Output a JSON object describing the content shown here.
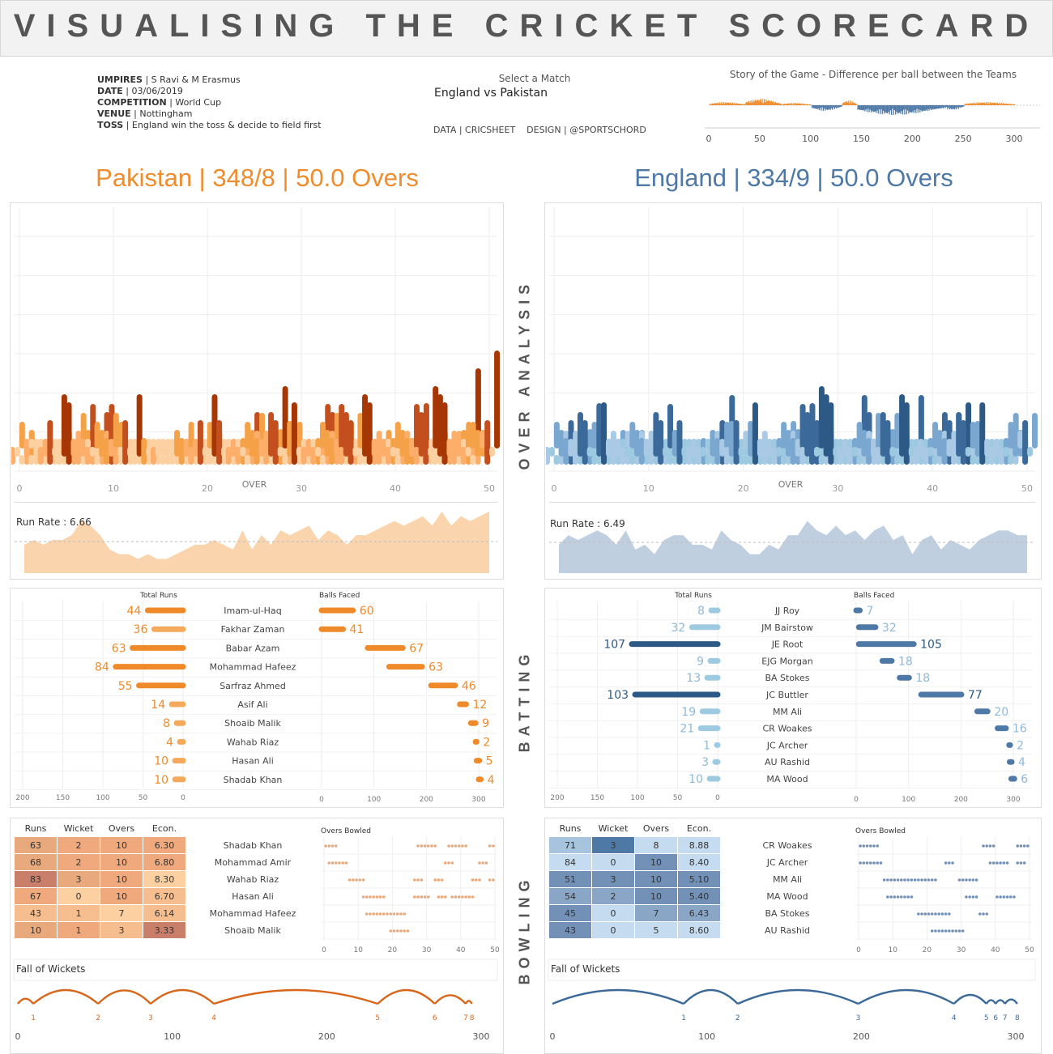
{
  "header": {
    "title": "VISUALISING THE CRICKET SCORECARD",
    "umpires_label": "UMPIRES",
    "umpires": "S Ravi & M Erasmus",
    "date_label": "DATE",
    "date": "03/06/2019",
    "competition_label": "COMPETITION",
    "competition": "World Cup",
    "venue_label": "VENUE",
    "venue": "Nottingham",
    "toss_label": "TOSS",
    "toss": "England win the toss & decide to field first",
    "select_label": "Select a Match",
    "select_value": "England vs Pakistan",
    "credits": "DATA | CRICSHEET    DESIGN | @SPORTSCHORD",
    "story_title": "Story of the Game - Difference per ball between the Teams"
  },
  "section_labels": {
    "over": "OVER ANALYSIS",
    "batting": "BATTING",
    "bowling": "BOWLING"
  },
  "colors": {
    "pak": "#ef8c2d",
    "eng": "#4e79a7"
  },
  "teams": {
    "pakistan": {
      "title": "Pakistan | 348/8 | 50.0 Overs",
      "run_rate": "Run Rate : 6.66"
    },
    "england": {
      "title": "England | 334/9 | 50.0 Overs",
      "run_rate": "Run Rate : 6.49"
    }
  },
  "labels": {
    "over": "OVER",
    "total_runs": "Total Runs",
    "balls_faced": "Balls Faced",
    "overs_bowled": "Overs Bowled",
    "fall_of_wickets": "Fall of Wickets",
    "runs": "Runs",
    "wicket": "Wicket",
    "overs": "Overs",
    "econ": "Econ."
  },
  "chart_data": [
    {
      "id": "story",
      "type": "bar",
      "title": "Story of the Game - Difference per ball between the Teams",
      "xlim": [
        0,
        300
      ],
      "x_ticks": [
        0,
        50,
        100,
        150,
        200,
        250,
        300
      ],
      "segments": [
        {
          "from": 1,
          "to": 35,
          "sign": "pos",
          "peak": 4
        },
        {
          "from": 36,
          "to": 70,
          "sign": "pos",
          "peak": 8
        },
        {
          "from": 71,
          "to": 100,
          "sign": "pos",
          "peak": 3
        },
        {
          "from": 101,
          "to": 130,
          "sign": "neg",
          "peak": 7
        },
        {
          "from": 131,
          "to": 145,
          "sign": "pos",
          "peak": 6
        },
        {
          "from": 146,
          "to": 230,
          "sign": "neg",
          "peak": 12
        },
        {
          "from": 231,
          "to": 250,
          "sign": "neg",
          "peak": 6
        },
        {
          "from": 251,
          "to": 300,
          "sign": "pos",
          "peak": 4
        }
      ]
    },
    {
      "id": "pak-overs",
      "type": "bar",
      "xlabel": "OVER",
      "xlim": [
        0,
        50
      ],
      "x_ticks": [
        0,
        10,
        20,
        30,
        40,
        50
      ],
      "series": [
        {
          "name": "Pakistan",
          "values": [
            6,
            1,
            0,
            2,
            4,
            11,
            14,
            3,
            12,
            9,
            6,
            1,
            4,
            6,
            2,
            1,
            0,
            2,
            5,
            2,
            6,
            7,
            4,
            5,
            11,
            3,
            4,
            8,
            14,
            3,
            6,
            9,
            11,
            4,
            10,
            6,
            7,
            8,
            10,
            4,
            4,
            5,
            12,
            5,
            10,
            9,
            12,
            13,
            6,
            17
          ]
        }
      ]
    },
    {
      "id": "eng-overs",
      "type": "bar",
      "xlabel": "OVER",
      "xlim": [
        0,
        50
      ],
      "x_ticks": [
        0,
        10,
        20,
        30,
        40,
        50
      ],
      "series": [
        {
          "name": "England",
          "values": [
            4,
            7,
            4,
            8,
            6,
            5,
            11,
            3,
            6,
            3,
            4,
            6,
            8,
            2,
            4,
            6,
            1,
            12,
            5,
            4,
            5,
            3,
            9,
            4,
            7,
            6,
            12,
            9,
            11,
            7,
            6,
            10,
            8,
            4,
            6,
            8,
            7,
            13,
            6,
            5,
            8,
            10,
            4,
            13,
            6,
            3,
            7,
            8,
            6,
            10
          ]
        }
      ]
    },
    {
      "id": "pak-runrate",
      "type": "area",
      "ylabel": "Run Rate : 6.66",
      "reference": 6.66,
      "values": [
        6,
        7,
        6,
        7,
        7,
        8,
        11,
        10,
        8,
        5,
        4,
        4,
        3,
        4,
        3,
        3,
        4,
        5,
        6,
        6,
        7,
        6,
        5,
        9,
        5,
        8,
        6,
        9,
        8,
        9,
        10,
        7,
        9,
        8,
        6,
        8,
        8,
        9,
        10,
        11,
        10,
        11,
        12,
        10,
        13,
        10,
        12,
        11,
        12,
        13
      ]
    },
    {
      "id": "eng-runrate",
      "type": "area",
      "ylabel": "Run Rate : 6.49",
      "reference": 6.49,
      "values": [
        6,
        8,
        7,
        8,
        9,
        8,
        6,
        9,
        5,
        6,
        4,
        7,
        8,
        8,
        6,
        6,
        5,
        9,
        7,
        6,
        4,
        4,
        6,
        5,
        8,
        8,
        11,
        9,
        8,
        10,
        8,
        9,
        7,
        9,
        10,
        7,
        8,
        4,
        7,
        8,
        5,
        7,
        6,
        5,
        7,
        8,
        9,
        9,
        8,
        8
      ]
    },
    {
      "id": "pak-batting",
      "type": "bar",
      "categories": [
        "Imam-ul-Haq",
        "Fakhar Zaman",
        "Babar Azam",
        "Mohammad Hafeez",
        "Sarfraz Ahmed",
        "Asif Ali",
        "Shoaib Malik",
        "Wahab Riaz",
        "Hasan Ali",
        "Shadab Khan"
      ],
      "series": [
        {
          "name": "Total Runs",
          "values": [
            44,
            36,
            63,
            84,
            55,
            14,
            8,
            4,
            10,
            10
          ]
        },
        {
          "name": "Balls Faced",
          "values": [
            60,
            41,
            67,
            63,
            46,
            12,
            9,
            2,
            5,
            4
          ],
          "start": [
            0,
            0,
            88,
            129,
            209,
            264,
            285,
            294,
            296,
            300
          ]
        }
      ],
      "runs_axis": {
        "lim": [
          200,
          0
        ],
        "ticks": [
          200,
          150,
          100,
          50,
          0
        ]
      },
      "balls_axis": {
        "lim": [
          0,
          300
        ],
        "ticks": [
          0,
          100,
          200,
          300
        ]
      }
    },
    {
      "id": "eng-batting",
      "type": "bar",
      "categories": [
        "JJ Roy",
        "JM Bairstow",
        "JE Root",
        "EJG Morgan",
        "BA Stokes",
        "JC Buttler",
        "MM Ali",
        "CR Woakes",
        "JC Archer",
        "AU Rashid",
        "MA Wood"
      ],
      "series": [
        {
          "name": "Total Runs",
          "values": [
            8,
            32,
            107,
            9,
            13,
            103,
            19,
            21,
            1,
            3,
            10
          ]
        },
        {
          "name": "Balls Faced",
          "values": [
            7,
            32,
            105,
            18,
            18,
            77,
            20,
            16,
            2,
            4,
            6
          ],
          "start": [
            0,
            5,
            5,
            50,
            83,
            124,
            231,
            270,
            292,
            293,
            296
          ]
        }
      ],
      "runs_axis": {
        "lim": [
          200,
          0
        ],
        "ticks": [
          200,
          150,
          100,
          50,
          0
        ]
      },
      "balls_axis": {
        "lim": [
          0,
          300
        ],
        "ticks": [
          0,
          100,
          200,
          300
        ]
      }
    },
    {
      "id": "pak-bowling",
      "type": "table",
      "columns": [
        "Runs",
        "Wicket",
        "Overs",
        "Econ."
      ],
      "rows": [
        {
          "name": "Shadab Khan",
          "values": [
            "63",
            "2",
            "10",
            "6.30"
          ],
          "overs": [
            1,
            2,
            3,
            4,
            28,
            29,
            30,
            31,
            32,
            33,
            37,
            38,
            39,
            40,
            41,
            42,
            49,
            50
          ],
          "shade": [
            4,
            3,
            3,
            3
          ]
        },
        {
          "name": "Mohammad Amir",
          "values": [
            "68",
            "2",
            "10",
            "6.80"
          ],
          "overs": [
            2,
            3,
            4,
            5,
            6,
            7,
            36,
            37,
            38,
            46,
            47,
            48
          ],
          "shade": [
            4,
            3,
            3,
            3
          ]
        },
        {
          "name": "Wahab Riaz",
          "values": [
            "83",
            "3",
            "10",
            "8.30"
          ],
          "overs": [
            8,
            9,
            10,
            11,
            12,
            27,
            28,
            29,
            33,
            34,
            35,
            44,
            45,
            46,
            49,
            50
          ],
          "shade": [
            5,
            4,
            3,
            1
          ]
        },
        {
          "name": "Hasan Ali",
          "values": [
            "67",
            "0",
            "10",
            "6.70"
          ],
          "overs": [
            12,
            13,
            14,
            15,
            16,
            17,
            18,
            27,
            28,
            29,
            30,
            31,
            34,
            35,
            36,
            38,
            39,
            40,
            41,
            42,
            43,
            44
          ],
          "shade": [
            3,
            1,
            3,
            2
          ]
        },
        {
          "name": "Mohammad Hafeez",
          "values": [
            "43",
            "1",
            "7",
            "6.14"
          ],
          "overs": [
            13,
            14,
            15,
            16,
            17,
            18,
            19,
            20,
            21,
            22,
            23,
            24
          ],
          "shade": [
            2,
            2,
            1,
            2
          ]
        },
        {
          "name": "Shoaib Malik",
          "values": [
            "10",
            "1",
            "3",
            "3.33"
          ],
          "overs": [
            20,
            21,
            22,
            23,
            24,
            25
          ],
          "shade": [
            4,
            3,
            2,
            5
          ]
        }
      ],
      "overs_axis": {
        "lim": [
          0,
          50
        ],
        "ticks": [
          0,
          10,
          20,
          30,
          40,
          50
        ]
      }
    },
    {
      "id": "eng-bowling",
      "type": "table",
      "columns": [
        "Runs",
        "Wicket",
        "Overs",
        "Econ."
      ],
      "rows": [
        {
          "name": "CR Woakes",
          "values": [
            "71",
            "3",
            "8",
            "8.88"
          ],
          "overs": [
            1,
            2,
            3,
            4,
            5,
            6,
            37,
            38,
            39,
            40,
            47,
            48,
            49,
            50
          ],
          "shade": [
            2,
            5,
            1,
            1
          ]
        },
        {
          "name": "JC Archer",
          "values": [
            "84",
            "0",
            "10",
            "8.40"
          ],
          "overs": [
            1,
            2,
            3,
            4,
            5,
            6,
            7,
            26,
            27,
            28,
            39,
            40,
            41,
            42,
            43,
            44,
            47,
            48,
            49
          ],
          "shade": [
            1,
            1,
            4,
            1
          ]
        },
        {
          "name": "MM Ali",
          "values": [
            "51",
            "3",
            "10",
            "5.10"
          ],
          "overs": [
            8,
            9,
            10,
            11,
            12,
            13,
            14,
            15,
            16,
            17,
            18,
            19,
            20,
            21,
            22,
            23,
            30,
            31,
            32,
            33,
            34,
            35
          ],
          "shade": [
            4,
            4,
            4,
            4
          ]
        },
        {
          "name": "MA Wood",
          "values": [
            "54",
            "2",
            "10",
            "5.40"
          ],
          "overs": [
            9,
            10,
            11,
            12,
            13,
            14,
            15,
            16,
            32,
            33,
            34,
            35,
            41,
            42,
            43,
            44,
            45,
            46
          ],
          "shade": [
            3,
            3,
            4,
            4
          ]
        },
        {
          "name": "BA Stokes",
          "values": [
            "45",
            "0",
            "7",
            "6.43"
          ],
          "overs": [
            18,
            19,
            20,
            21,
            22,
            23,
            24,
            25,
            26,
            27,
            36,
            37,
            38
          ],
          "shade": [
            4,
            1,
            3,
            3
          ]
        },
        {
          "name": "AU Rashid",
          "values": [
            "43",
            "0",
            "5",
            "8.60"
          ],
          "overs": [
            22,
            23,
            24,
            25,
            26,
            27,
            28,
            29,
            30,
            31
          ],
          "shade": [
            4,
            1,
            1,
            1
          ]
        }
      ],
      "overs_axis": {
        "lim": [
          0,
          50
        ],
        "ticks": [
          0,
          10,
          20,
          30,
          40,
          50
        ]
      }
    },
    {
      "id": "pak-fow",
      "type": "line",
      "title": "Fall of Wickets",
      "xlim": [
        0,
        300
      ],
      "x_ticks": [
        0,
        100,
        200,
        300
      ],
      "wickets": [
        {
          "n": 1,
          "x": 10
        },
        {
          "n": 2,
          "x": 52
        },
        {
          "n": 3,
          "x": 86
        },
        {
          "n": 4,
          "x": 127
        },
        {
          "n": 5,
          "x": 233
        },
        {
          "n": 6,
          "x": 270
        },
        {
          "n": 7,
          "x": 290
        },
        {
          "n": 8,
          "x": 294
        }
      ]
    },
    {
      "id": "eng-fow",
      "type": "line",
      "title": "Fall of Wickets",
      "xlim": [
        0,
        300
      ],
      "x_ticks": [
        0,
        100,
        200,
        300
      ],
      "wickets": [
        {
          "n": 1,
          "x": 85
        },
        {
          "n": 2,
          "x": 120
        },
        {
          "n": 3,
          "x": 198
        },
        {
          "n": 4,
          "x": 260
        },
        {
          "n": 5,
          "x": 281
        },
        {
          "n": 6,
          "x": 287
        },
        {
          "n": 7,
          "x": 293
        },
        {
          "n": 8,
          "x": 301
        }
      ]
    }
  ]
}
